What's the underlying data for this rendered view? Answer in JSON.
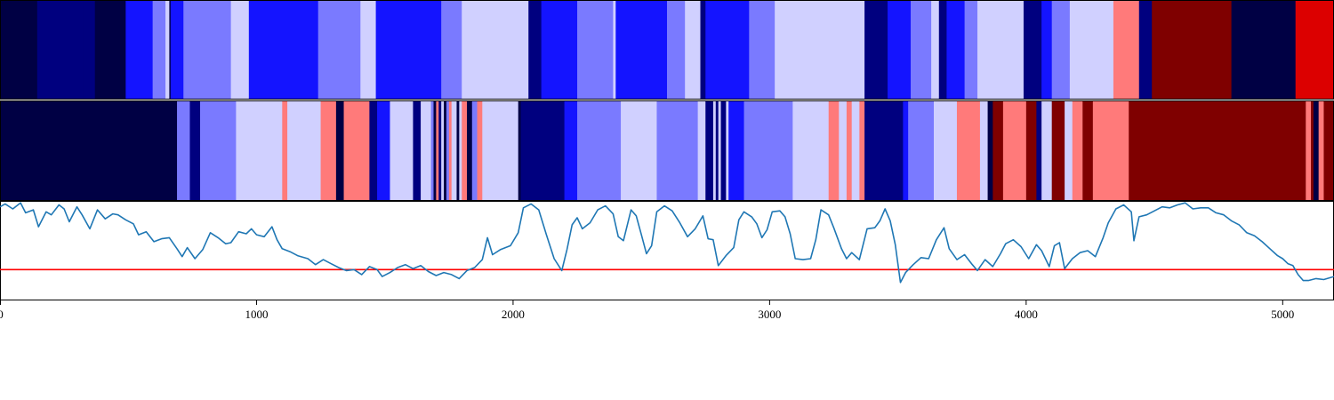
{
  "chart_data": {
    "type": "heatmap",
    "x_range": [
      0,
      5200
    ],
    "x_ticks": [
      0,
      1000,
      2000,
      3000,
      4000,
      5000
    ],
    "x_tick_labels": [
      "0",
      "1000",
      "2000",
      "3000",
      "4000",
      "5000"
    ],
    "palette": {
      "0": "#000044",
      "1": "#00007f",
      "2": "#1414ff",
      "3": "#7a7aff",
      "4": "#d0d0ff",
      "5": "#ff7a7a",
      "6": "#7f0000",
      "7": "#dc0000"
    },
    "line_color": "#1f77b4",
    "threshold_color": "#ff0000",
    "strip_top": {
      "segments": [
        [
          0,
          145,
          0
        ],
        [
          145,
          325,
          1
        ],
        [
          325,
          370,
          1
        ],
        [
          370,
          490,
          0
        ],
        [
          490,
          595,
          2
        ],
        [
          595,
          645,
          3
        ],
        [
          645,
          660,
          4
        ],
        [
          660,
          665,
          0
        ],
        [
          665,
          715,
          2
        ],
        [
          715,
          900,
          3
        ],
        [
          900,
          970,
          4
        ],
        [
          970,
          1000,
          2
        ],
        [
          1000,
          1240,
          2
        ],
        [
          1240,
          1405,
          3
        ],
        [
          1405,
          1465,
          4
        ],
        [
          1465,
          1480,
          2
        ],
        [
          1480,
          1720,
          2
        ],
        [
          1720,
          1800,
          3
        ],
        [
          1800,
          2060,
          4
        ],
        [
          2060,
          2110,
          1
        ],
        [
          2110,
          2135,
          2
        ],
        [
          2135,
          2250,
          2
        ],
        [
          2250,
          2390,
          3
        ],
        [
          2390,
          2400,
          4
        ],
        [
          2400,
          2420,
          2
        ],
        [
          2420,
          2600,
          2
        ],
        [
          2600,
          2670,
          3
        ],
        [
          2670,
          2730,
          4
        ],
        [
          2730,
          2750,
          1
        ],
        [
          2750,
          2750,
          2
        ],
        [
          2750,
          2920,
          2
        ],
        [
          2920,
          3020,
          3
        ],
        [
          3020,
          3370,
          4
        ],
        [
          3370,
          3460,
          1
        ],
        [
          3460,
          3480,
          2
        ],
        [
          3480,
          3550,
          2
        ],
        [
          3550,
          3630,
          3
        ],
        [
          3630,
          3660,
          4
        ],
        [
          3660,
          3690,
          1
        ],
        [
          3690,
          3760,
          2
        ],
        [
          3760,
          3810,
          3
        ],
        [
          3810,
          3990,
          4
        ],
        [
          3990,
          4060,
          1
        ],
        [
          4060,
          4100,
          2
        ],
        [
          4100,
          4170,
          3
        ],
        [
          4170,
          4340,
          4
        ],
        [
          4340,
          4440,
          5
        ],
        [
          4440,
          4490,
          1
        ],
        [
          4490,
          4800,
          6
        ],
        [
          4800,
          5050,
          0
        ],
        [
          5050,
          5200,
          7
        ]
      ]
    },
    "strip_bottom": {
      "segments": [
        [
          0,
          690,
          0
        ],
        [
          690,
          740,
          3
        ],
        [
          740,
          780,
          1
        ],
        [
          780,
          800,
          3
        ],
        [
          800,
          920,
          3
        ],
        [
          920,
          1100,
          4
        ],
        [
          1100,
          1120,
          5
        ],
        [
          1120,
          1250,
          4
        ],
        [
          1250,
          1310,
          5
        ],
        [
          1310,
          1340,
          0
        ],
        [
          1340,
          1440,
          5
        ],
        [
          1440,
          1470,
          1
        ],
        [
          1470,
          1520,
          2
        ],
        [
          1520,
          1610,
          4
        ],
        [
          1610,
          1640,
          1
        ],
        [
          1640,
          1680,
          4
        ],
        [
          1680,
          1690,
          3
        ],
        [
          1690,
          1700,
          0
        ],
        [
          1700,
          1710,
          5
        ],
        [
          1710,
          1720,
          1
        ],
        [
          1720,
          1730,
          4
        ],
        [
          1730,
          1740,
          0
        ],
        [
          1740,
          1750,
          3
        ],
        [
          1750,
          1760,
          5
        ],
        [
          1760,
          1780,
          4
        ],
        [
          1780,
          1790,
          0
        ],
        [
          1790,
          1800,
          4
        ],
        [
          1800,
          1820,
          5
        ],
        [
          1820,
          1840,
          0
        ],
        [
          1840,
          1860,
          3
        ],
        [
          1860,
          1880,
          5
        ],
        [
          1880,
          2020,
          4
        ],
        [
          2020,
          2030,
          0
        ],
        [
          2030,
          2200,
          1
        ],
        [
          2200,
          2250,
          2
        ],
        [
          2250,
          2420,
          3
        ],
        [
          2420,
          2560,
          4
        ],
        [
          2560,
          2720,
          3
        ],
        [
          2720,
          2750,
          4
        ],
        [
          2750,
          2780,
          1
        ],
        [
          2780,
          2790,
          4
        ],
        [
          2790,
          2800,
          1
        ],
        [
          2800,
          2810,
          4
        ],
        [
          2810,
          2830,
          1
        ],
        [
          2830,
          2840,
          4
        ],
        [
          2840,
          2900,
          2
        ],
        [
          2900,
          3090,
          3
        ],
        [
          3090,
          3230,
          4
        ],
        [
          3230,
          3270,
          5
        ],
        [
          3270,
          3300,
          4
        ],
        [
          3300,
          3320,
          5
        ],
        [
          3320,
          3350,
          4
        ],
        [
          3350,
          3370,
          5
        ],
        [
          3370,
          3520,
          1
        ],
        [
          3520,
          3540,
          2
        ],
        [
          3540,
          3640,
          3
        ],
        [
          3640,
          3730,
          4
        ],
        [
          3730,
          3820,
          5
        ],
        [
          3820,
          3850,
          4
        ],
        [
          3850,
          3870,
          0
        ],
        [
          3870,
          3910,
          6
        ],
        [
          3910,
          4000,
          5
        ],
        [
          4000,
          4040,
          6
        ],
        [
          4040,
          4060,
          1
        ],
        [
          4060,
          4100,
          4
        ],
        [
          4100,
          4150,
          6
        ],
        [
          4150,
          4180,
          4
        ],
        [
          4180,
          4220,
          5
        ],
        [
          4220,
          4260,
          6
        ],
        [
          4260,
          4400,
          5
        ],
        [
          4400,
          5090,
          6
        ],
        [
          5090,
          5110,
          5
        ],
        [
          5110,
          5120,
          6
        ],
        [
          5120,
          5140,
          0
        ],
        [
          5140,
          5160,
          5
        ],
        [
          5160,
          5200,
          6
        ]
      ]
    },
    "line_series": {
      "y_range": [
        0,
        1
      ],
      "threshold": 0.31,
      "points": [
        [
          0,
          0.94
        ],
        [
          20,
          0.97
        ],
        [
          50,
          0.92
        ],
        [
          80,
          0.98
        ],
        [
          100,
          0.88
        ],
        [
          130,
          0.91
        ],
        [
          150,
          0.74
        ],
        [
          180,
          0.89
        ],
        [
          200,
          0.86
        ],
        [
          230,
          0.96
        ],
        [
          250,
          0.92
        ],
        [
          270,
          0.79
        ],
        [
          300,
          0.94
        ],
        [
          320,
          0.86
        ],
        [
          350,
          0.72
        ],
        [
          380,
          0.91
        ],
        [
          410,
          0.82
        ],
        [
          440,
          0.87
        ],
        [
          460,
          0.86
        ],
        [
          490,
          0.81
        ],
        [
          520,
          0.77
        ],
        [
          540,
          0.66
        ],
        [
          570,
          0.69
        ],
        [
          600,
          0.59
        ],
        [
          630,
          0.62
        ],
        [
          660,
          0.63
        ],
        [
          690,
          0.52
        ],
        [
          710,
          0.44
        ],
        [
          730,
          0.53
        ],
        [
          760,
          0.42
        ],
        [
          790,
          0.51
        ],
        [
          820,
          0.68
        ],
        [
          850,
          0.63
        ],
        [
          880,
          0.57
        ],
        [
          900,
          0.58
        ],
        [
          930,
          0.69
        ],
        [
          960,
          0.67
        ],
        [
          980,
          0.72
        ],
        [
          1000,
          0.66
        ],
        [
          1030,
          0.64
        ],
        [
          1060,
          0.74
        ],
        [
          1080,
          0.61
        ],
        [
          1100,
          0.52
        ],
        [
          1130,
          0.49
        ],
        [
          1160,
          0.45
        ],
        [
          1200,
          0.42
        ],
        [
          1230,
          0.36
        ],
        [
          1260,
          0.41
        ],
        [
          1290,
          0.37
        ],
        [
          1320,
          0.33
        ],
        [
          1350,
          0.3
        ],
        [
          1380,
          0.31
        ],
        [
          1410,
          0.26
        ],
        [
          1440,
          0.34
        ],
        [
          1470,
          0.31
        ],
        [
          1490,
          0.24
        ],
        [
          1520,
          0.28
        ],
        [
          1550,
          0.33
        ],
        [
          1580,
          0.36
        ],
        [
          1610,
          0.32
        ],
        [
          1640,
          0.35
        ],
        [
          1670,
          0.29
        ],
        [
          1700,
          0.25
        ],
        [
          1730,
          0.28
        ],
        [
          1760,
          0.26
        ],
        [
          1790,
          0.22
        ],
        [
          1820,
          0.3
        ],
        [
          1850,
          0.33
        ],
        [
          1880,
          0.41
        ],
        [
          1900,
          0.63
        ],
        [
          1920,
          0.46
        ],
        [
          1950,
          0.51
        ],
        [
          1990,
          0.55
        ],
        [
          2020,
          0.68
        ],
        [
          2040,
          0.93
        ],
        [
          2070,
          0.97
        ],
        [
          2100,
          0.91
        ],
        [
          2130,
          0.66
        ],
        [
          2160,
          0.42
        ],
        [
          2190,
          0.3
        ],
        [
          2210,
          0.51
        ],
        [
          2230,
          0.76
        ],
        [
          2250,
          0.83
        ],
        [
          2270,
          0.72
        ],
        [
          2300,
          0.78
        ],
        [
          2330,
          0.91
        ],
        [
          2360,
          0.95
        ],
        [
          2390,
          0.87
        ],
        [
          2410,
          0.64
        ],
        [
          2430,
          0.6
        ],
        [
          2460,
          0.91
        ],
        [
          2480,
          0.85
        ],
        [
          2500,
          0.66
        ],
        [
          2520,
          0.47
        ],
        [
          2540,
          0.55
        ],
        [
          2560,
          0.89
        ],
        [
          2590,
          0.95
        ],
        [
          2620,
          0.9
        ],
        [
          2650,
          0.78
        ],
        [
          2680,
          0.64
        ],
        [
          2710,
          0.72
        ],
        [
          2740,
          0.85
        ],
        [
          2760,
          0.62
        ],
        [
          2780,
          0.61
        ],
        [
          2800,
          0.35
        ],
        [
          2830,
          0.45
        ],
        [
          2860,
          0.53
        ],
        [
          2880,
          0.81
        ],
        [
          2900,
          0.89
        ],
        [
          2930,
          0.84
        ],
        [
          2950,
          0.77
        ],
        [
          2970,
          0.63
        ],
        [
          2990,
          0.71
        ],
        [
          3010,
          0.89
        ],
        [
          3040,
          0.9
        ],
        [
          3060,
          0.84
        ],
        [
          3080,
          0.67
        ],
        [
          3100,
          0.42
        ],
        [
          3130,
          0.41
        ],
        [
          3160,
          0.42
        ],
        [
          3180,
          0.61
        ],
        [
          3200,
          0.91
        ],
        [
          3230,
          0.86
        ],
        [
          3250,
          0.73
        ],
        [
          3280,
          0.52
        ],
        [
          3300,
          0.42
        ],
        [
          3320,
          0.48
        ],
        [
          3350,
          0.41
        ],
        [
          3380,
          0.72
        ],
        [
          3410,
          0.73
        ],
        [
          3430,
          0.8
        ],
        [
          3450,
          0.92
        ],
        [
          3470,
          0.8
        ],
        [
          3490,
          0.56
        ],
        [
          3510,
          0.18
        ],
        [
          3530,
          0.28
        ],
        [
          3560,
          0.36
        ],
        [
          3590,
          0.43
        ],
        [
          3620,
          0.42
        ],
        [
          3650,
          0.61
        ],
        [
          3680,
          0.73
        ],
        [
          3700,
          0.52
        ],
        [
          3730,
          0.41
        ],
        [
          3760,
          0.46
        ],
        [
          3790,
          0.36
        ],
        [
          3810,
          0.3
        ],
        [
          3840,
          0.41
        ],
        [
          3870,
          0.34
        ],
        [
          3900,
          0.47
        ],
        [
          3920,
          0.57
        ],
        [
          3950,
          0.61
        ],
        [
          3980,
          0.54
        ],
        [
          4010,
          0.42
        ],
        [
          4040,
          0.56
        ],
        [
          4060,
          0.5
        ],
        [
          4090,
          0.34
        ],
        [
          4110,
          0.55
        ],
        [
          4130,
          0.58
        ],
        [
          4150,
          0.32
        ],
        [
          4180,
          0.42
        ],
        [
          4210,
          0.48
        ],
        [
          4240,
          0.5
        ],
        [
          4270,
          0.44
        ],
        [
          4300,
          0.63
        ],
        [
          4320,
          0.78
        ],
        [
          4350,
          0.92
        ],
        [
          4380,
          0.96
        ],
        [
          4410,
          0.89
        ],
        [
          4420,
          0.6
        ],
        [
          4440,
          0.84
        ],
        [
          4470,
          0.86
        ],
        [
          4500,
          0.9
        ],
        [
          4530,
          0.94
        ],
        [
          4560,
          0.93
        ],
        [
          4590,
          0.96
        ],
        [
          4620,
          0.98
        ],
        [
          4650,
          0.92
        ],
        [
          4680,
          0.93
        ],
        [
          4710,
          0.93
        ],
        [
          4740,
          0.88
        ],
        [
          4770,
          0.86
        ],
        [
          4800,
          0.8
        ],
        [
          4830,
          0.76
        ],
        [
          4860,
          0.68
        ],
        [
          4890,
          0.65
        ],
        [
          4920,
          0.59
        ],
        [
          4950,
          0.52
        ],
        [
          4980,
          0.45
        ],
        [
          5000,
          0.42
        ],
        [
          5020,
          0.37
        ],
        [
          5040,
          0.35
        ],
        [
          5060,
          0.26
        ],
        [
          5080,
          0.2
        ],
        [
          5100,
          0.2
        ],
        [
          5130,
          0.22
        ],
        [
          5160,
          0.21
        ],
        [
          5200,
          0.24
        ]
      ]
    }
  }
}
